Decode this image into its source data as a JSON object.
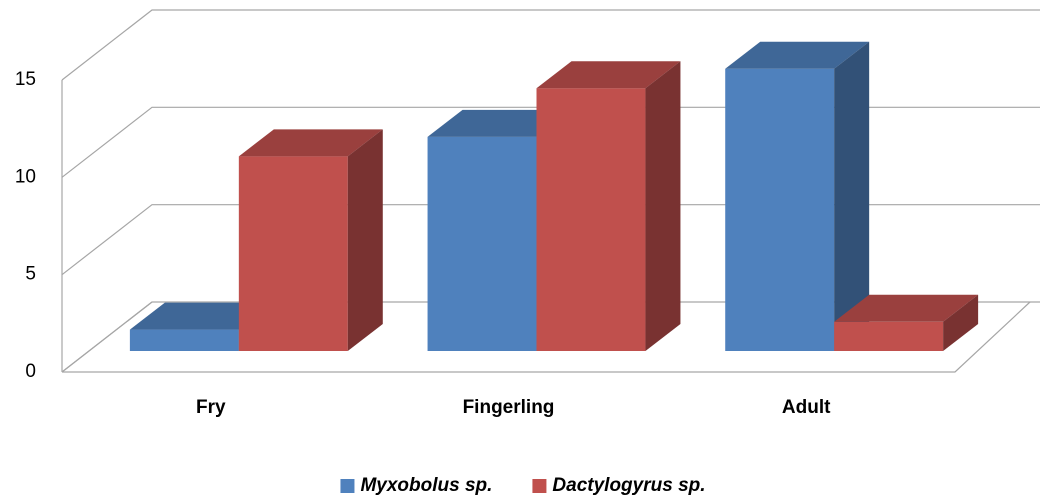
{
  "chart_data": {
    "type": "bar3d",
    "categories": [
      "Fry",
      "Fingerling",
      "Adult"
    ],
    "series": [
      {
        "name": "Myxobolus sp.",
        "color": "#4f81bd",
        "values": [
          1.1,
          11,
          14.5
        ]
      },
      {
        "name": "Dactylogyrus sp.",
        "color": "#c0504d",
        "values": [
          10,
          13.5,
          1.5
        ]
      }
    ],
    "ylim": [
      0,
      15
    ],
    "yticks": [
      0,
      5,
      10,
      15
    ],
    "grid": true,
    "legend": "bottom"
  }
}
